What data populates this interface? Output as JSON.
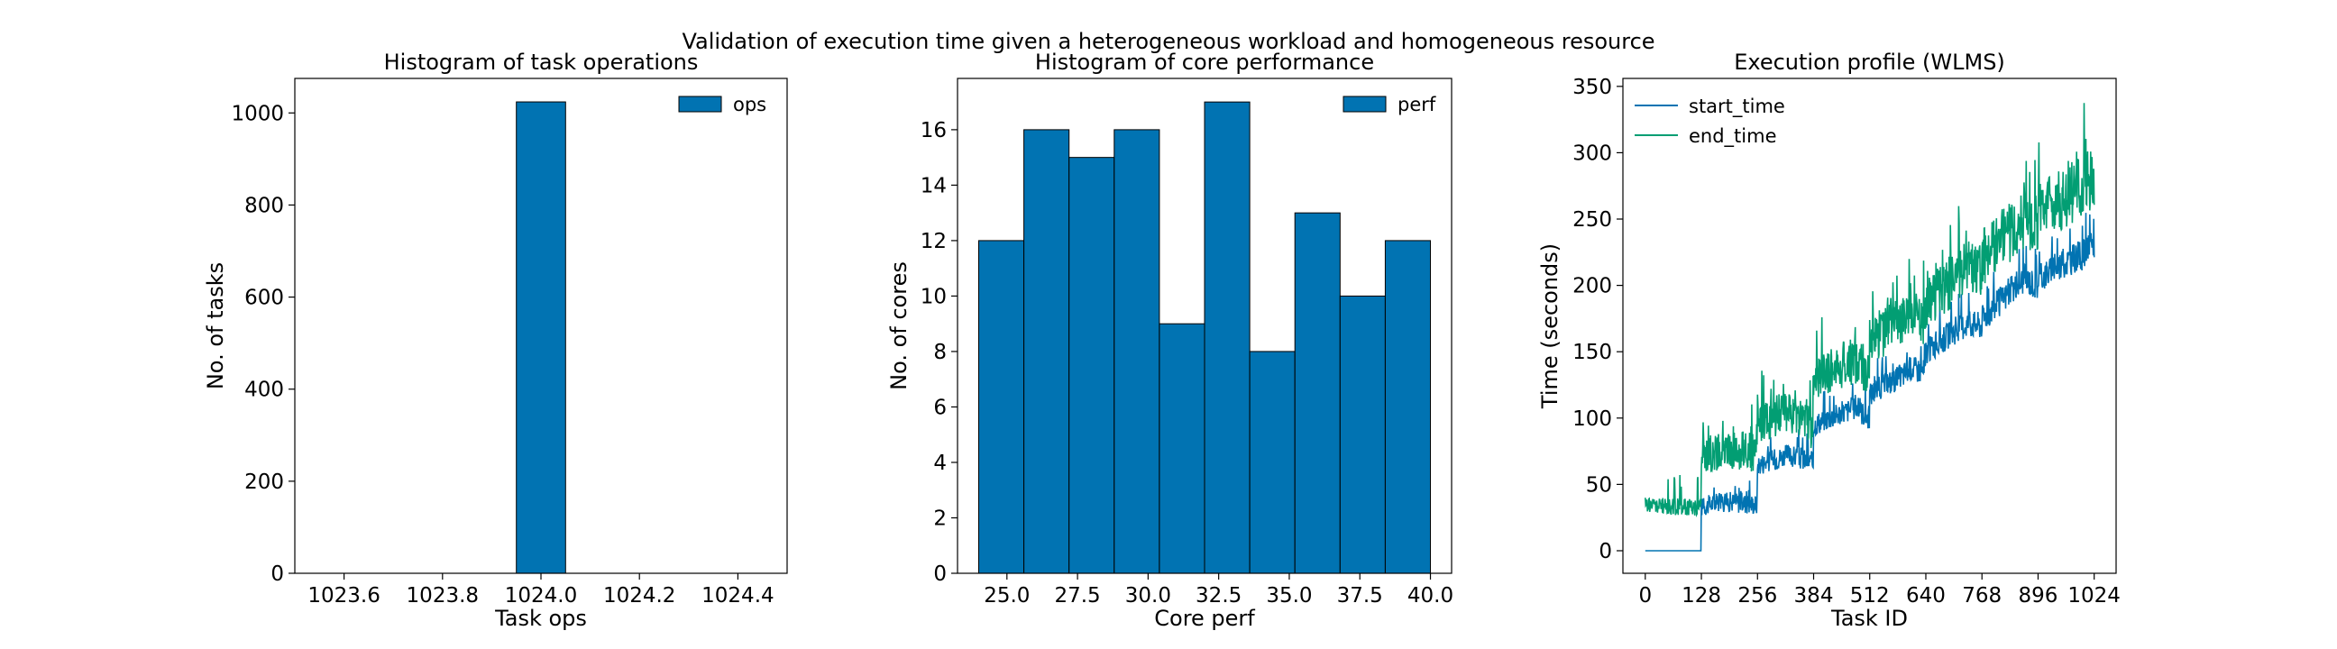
{
  "figure": {
    "suptitle": "Validation of execution time given a heterogeneous workload and homogeneous resource"
  },
  "colors": {
    "bar_fill": "#0173b2",
    "bar_edge": "#000000",
    "start_time": "#0173b2",
    "end_time": "#029e73"
  },
  "chart_data": [
    {
      "type": "bar",
      "title": "Histogram of task operations",
      "xlabel": "Task ops",
      "ylabel": "No. of tasks",
      "xlim": [
        1023.5,
        1024.5
      ],
      "ylim": [
        0,
        1075
      ],
      "xticks": [
        "1023.6",
        "1023.8",
        "1024.0",
        "1024.2",
        "1024.4"
      ],
      "yticks": [
        "0",
        "200",
        "400",
        "600",
        "800",
        "1000"
      ],
      "legend": "upper-right",
      "series": [
        {
          "name": "ops",
          "bins": [
            [
              1023.95,
              1024.05
            ]
          ],
          "values": [
            1024
          ]
        }
      ]
    },
    {
      "type": "bar",
      "title": "Histogram of core performance",
      "xlabel": "Core perf",
      "ylabel": "No. of cores",
      "xlim": [
        23.25,
        40.75
      ],
      "ylim": [
        0,
        17.85
      ],
      "xticks": [
        "25.0",
        "27.5",
        "30.0",
        "32.5",
        "35.0",
        "37.5",
        "40.0"
      ],
      "yticks": [
        "0",
        "2",
        "4",
        "6",
        "8",
        "10",
        "12",
        "14",
        "16"
      ],
      "legend": "upper-right",
      "series": [
        {
          "name": "perf",
          "bin_edges": [
            24,
            25.6,
            27.2,
            28.8,
            30.4,
            32,
            33.6,
            35.2,
            36.8,
            38.4,
            40
          ],
          "values": [
            12,
            16,
            15,
            16,
            9,
            17,
            8,
            13,
            10,
            12
          ]
        }
      ]
    },
    {
      "type": "line",
      "title": "Execution profile (WLMS)",
      "xlabel": "Task ID",
      "ylabel": "Time (seconds)",
      "xlim": [
        -51,
        1074
      ],
      "ylim": [
        -17,
        356
      ],
      "xticks": [
        "0",
        "128",
        "256",
        "384",
        "512",
        "640",
        "768",
        "896",
        "1024"
      ],
      "yticks": [
        "0",
        "50",
        "100",
        "150",
        "200",
        "250",
        "300",
        "350"
      ],
      "legend": "upper-left",
      "series": [
        {
          "name": "start_time",
          "x": [
            0,
            60,
            127,
            128,
            160,
            192,
            224,
            255,
            256,
            288,
            320,
            352,
            383,
            384,
            416,
            448,
            480,
            511,
            512,
            544,
            576,
            608,
            639,
            640,
            672,
            704,
            736,
            767,
            768,
            800,
            832,
            864,
            895,
            896,
            928,
            960,
            992,
            1024
          ],
          "y": [
            0,
            0,
            0,
            33,
            36,
            37,
            36,
            35,
            65,
            68,
            72,
            70,
            66,
            95,
            100,
            104,
            108,
            100,
            118,
            125,
            130,
            138,
            135,
            150,
            158,
            165,
            172,
            170,
            175,
            185,
            195,
            205,
            200,
            205,
            212,
            218,
            222,
            230
          ],
          "noise": 9
        },
        {
          "name": "end_time",
          "x": [
            0,
            60,
            127,
            128,
            160,
            192,
            224,
            255,
            256,
            288,
            320,
            352,
            383,
            384,
            416,
            448,
            480,
            511,
            512,
            544,
            576,
            608,
            639,
            640,
            672,
            704,
            736,
            767,
            768,
            800,
            832,
            864,
            895,
            896,
            928,
            960,
            992,
            1024
          ],
          "y": [
            35,
            33,
            33,
            72,
            74,
            75,
            76,
            72,
            95,
            100,
            105,
            100,
            92,
            130,
            135,
            140,
            142,
            135,
            160,
            165,
            172,
            180,
            175,
            185,
            195,
            205,
            215,
            210,
            220,
            230,
            240,
            250,
            245,
            255,
            262,
            268,
            272,
            280
          ],
          "noise": 22
        }
      ]
    }
  ]
}
